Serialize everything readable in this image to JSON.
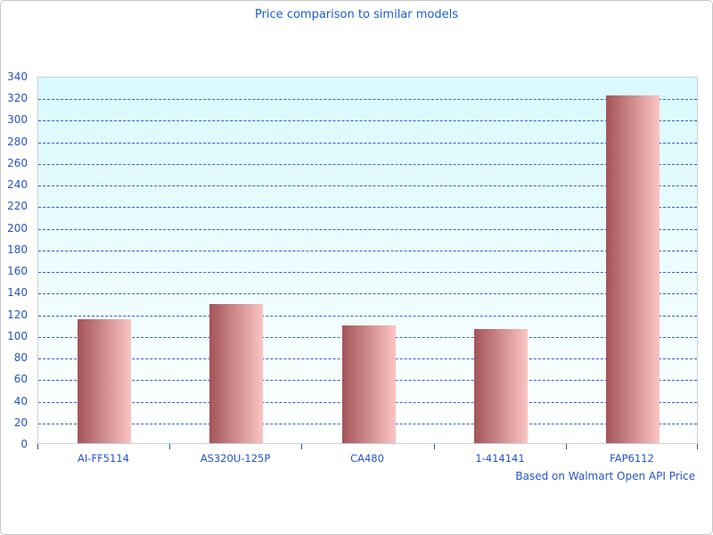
{
  "chart_data": {
    "type": "bar",
    "title": "Price comparison to similar models",
    "categories": [
      "AI-FF5114",
      "AS320U-125P",
      "CA480",
      "1-414141",
      "FAP6112"
    ],
    "values": [
      115,
      129,
      109,
      106,
      322
    ],
    "xlabel": "Based on Walmart Open API Price",
    "ylabel": "",
    "ylim": [
      0,
      340
    ],
    "ytick_step": 20,
    "grid": "horizontal-dashed",
    "legend_position": "none",
    "colors": {
      "title_text": "#1b5cd0",
      "axis_text": "#2553c8",
      "gridline": "#3160c9",
      "tick": "#2553c8",
      "bar_gradient_left": "#a35458",
      "bar_gradient_right": "#fbc4c2",
      "plot_background_top": "#d8f9fe",
      "plot_background_bottom": "#ffffff",
      "plot_border": "#ccd2d5",
      "panel_border": "#c7c7c7"
    }
  }
}
